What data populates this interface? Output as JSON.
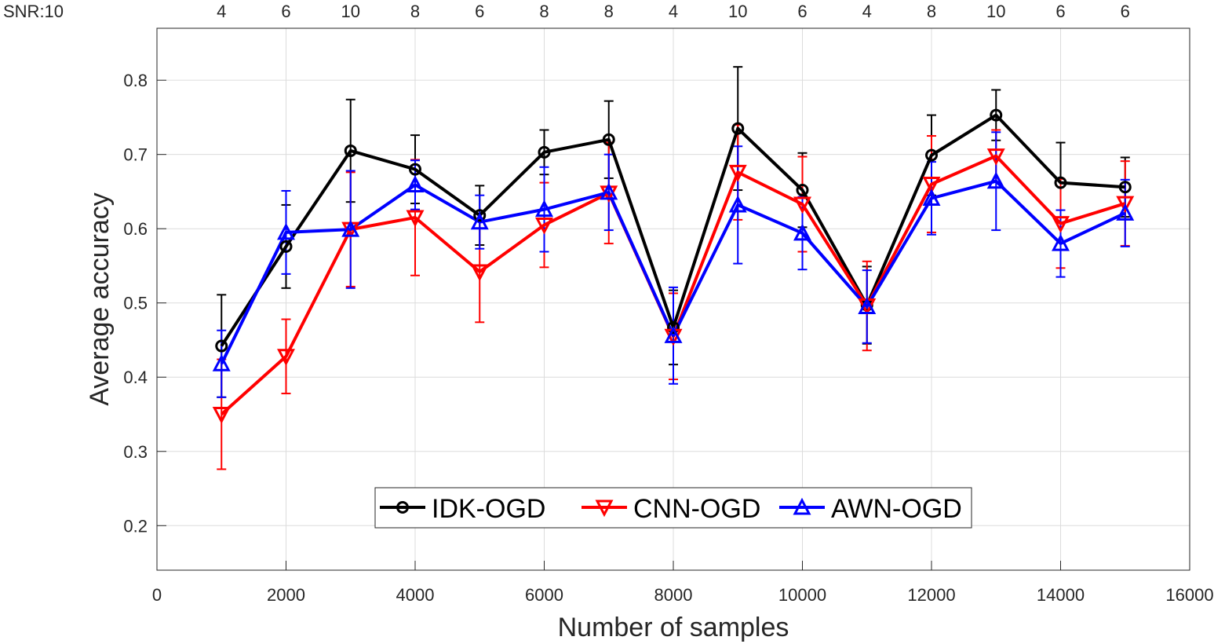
{
  "chart_data": {
    "type": "line",
    "xlabel": "Number of samples",
    "ylabel": "Average accuracy",
    "xlim": [
      0,
      16000
    ],
    "ylim": [
      0.14,
      0.87
    ],
    "xticks": [
      0,
      2000,
      4000,
      6000,
      8000,
      10000,
      12000,
      14000,
      16000
    ],
    "yticks": [
      0.2,
      0.3,
      0.4,
      0.5,
      0.6,
      0.7,
      0.8
    ],
    "ytick_labels": [
      "0.2",
      "0.3",
      "0.4",
      "0.5",
      "0.6",
      "0.7",
      "0.8"
    ],
    "grid": true,
    "legend_position": "bottom-center",
    "snr_prefix_label": "SNR:10",
    "snr_labels": [
      "4",
      "6",
      "10",
      "8",
      "6",
      "8",
      "8",
      "4",
      "10",
      "6",
      "4",
      "8",
      "10",
      "6",
      "6"
    ],
    "x": [
      1000,
      2000,
      3000,
      4000,
      5000,
      6000,
      7000,
      8000,
      9000,
      10000,
      11000,
      12000,
      13000,
      14000,
      15000
    ],
    "series": [
      {
        "name": "IDK-OGD",
        "color": "#000000",
        "marker": "circle",
        "values": [
          0.442,
          0.576,
          0.705,
          0.68,
          0.618,
          0.703,
          0.72,
          0.467,
          0.735,
          0.652,
          0.497,
          0.699,
          0.753,
          0.662,
          0.656
        ],
        "error": [
          0.069,
          0.056,
          0.069,
          0.046,
          0.04,
          0.03,
          0.052,
          0.05,
          0.083,
          0.05,
          0.052,
          0.054,
          0.034,
          0.054,
          0.04
        ]
      },
      {
        "name": "CNN-OGD",
        "color": "#ff0000",
        "marker": "triangle-down",
        "values": [
          0.35,
          0.428,
          0.599,
          0.615,
          0.542,
          0.605,
          0.648,
          0.455,
          0.676,
          0.633,
          0.496,
          0.66,
          0.698,
          0.607,
          0.634
        ],
        "error": [
          0.074,
          0.05,
          0.077,
          0.078,
          0.068,
          0.057,
          0.068,
          0.058,
          0.064,
          0.064,
          0.06,
          0.065,
          0.035,
          0.06,
          0.057
        ]
      },
      {
        "name": "AWN-OGD",
        "color": "#0000ff",
        "marker": "triangle-up",
        "values": [
          0.418,
          0.595,
          0.599,
          0.659,
          0.609,
          0.626,
          0.649,
          0.456,
          0.632,
          0.594,
          0.495,
          0.641,
          0.664,
          0.58,
          0.621
        ],
        "error": [
          0.045,
          0.056,
          0.079,
          0.033,
          0.036,
          0.057,
          0.051,
          0.065,
          0.079,
          0.049,
          0.049,
          0.049,
          0.066,
          0.045,
          0.045
        ]
      }
    ]
  }
}
